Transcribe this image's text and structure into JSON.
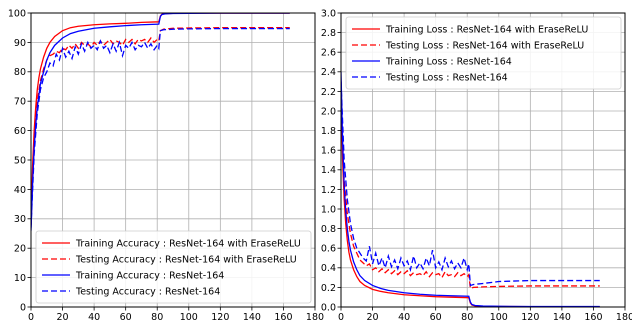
{
  "chart_data": [
    {
      "type": "line",
      "title": "",
      "xlabel": "",
      "ylabel": "",
      "xlim": [
        0,
        180
      ],
      "ylim": [
        0,
        100
      ],
      "xticks": [
        0,
        20,
        40,
        60,
        80,
        100,
        120,
        140,
        160,
        180
      ],
      "yticks": [
        0,
        10,
        20,
        30,
        40,
        50,
        60,
        70,
        80,
        90,
        100
      ],
      "grid": true,
      "legend_position": "lower-right",
      "series": [
        {
          "name": "Training Accuracy : ResNet-164 with EraseReLU",
          "color": "#ff0000",
          "dash": "solid",
          "x": [
            0,
            1,
            2,
            3,
            4,
            5,
            6,
            8,
            10,
            12,
            15,
            20,
            25,
            30,
            40,
            50,
            60,
            70,
            81,
            82,
            83,
            85,
            90,
            100,
            120,
            140,
            164
          ],
          "y": [
            28,
            48,
            60,
            68,
            74,
            78,
            81,
            85,
            88,
            90,
            92,
            94,
            95,
            95.5,
            96,
            96.3,
            96.5,
            96.8,
            97,
            99,
            99.6,
            99.8,
            99.9,
            99.95,
            99.97,
            99.98,
            99.98
          ]
        },
        {
          "name": "Testing Accuracy : ResNet-164 with EraseReLU",
          "color": "#ff0000",
          "dash": "dashed",
          "x": [
            0,
            2,
            4,
            6,
            8,
            10,
            12,
            14,
            16,
            18,
            20,
            22,
            24,
            26,
            28,
            30,
            32,
            34,
            36,
            38,
            40,
            42,
            44,
            46,
            48,
            50,
            52,
            54,
            56,
            58,
            60,
            62,
            64,
            66,
            68,
            70,
            72,
            74,
            76,
            78,
            80,
            81,
            82,
            84,
            90,
            100,
            120,
            140,
            164
          ],
          "y": [
            28,
            58,
            70,
            77,
            81,
            84,
            85.5,
            86,
            87,
            86.5,
            88,
            87.5,
            89,
            88,
            89.5,
            88,
            90,
            89,
            89.5,
            88.5,
            90,
            89,
            90.5,
            89,
            90,
            91,
            89.5,
            90.5,
            90,
            89,
            91,
            90,
            91,
            89.5,
            91,
            90.5,
            91,
            90,
            91.5,
            90,
            91,
            90.5,
            94,
            94.5,
            94.8,
            94.9,
            95,
            95,
            95
          ]
        },
        {
          "name": "Training Accuracy : ResNet-164",
          "color": "#0000ff",
          "dash": "solid",
          "x": [
            0,
            1,
            2,
            3,
            4,
            5,
            6,
            8,
            10,
            12,
            15,
            20,
            25,
            30,
            40,
            50,
            60,
            70,
            81,
            82,
            83,
            85,
            90,
            100,
            120,
            140,
            164
          ],
          "y": [
            26,
            42,
            54,
            62,
            68,
            72,
            76,
            80,
            84,
            86.5,
            89,
            91.5,
            93,
            93.8,
            94.8,
            95.3,
            95.7,
            96,
            96.2,
            98.8,
            99.5,
            99.7,
            99.85,
            99.9,
            99.95,
            99.96,
            99.97
          ]
        },
        {
          "name": "Testing Accuracy : ResNet-164",
          "color": "#0000ff",
          "dash": "dashed",
          "x": [
            0,
            2,
            4,
            6,
            8,
            10,
            12,
            14,
            16,
            18,
            20,
            22,
            24,
            26,
            28,
            30,
            32,
            34,
            36,
            38,
            40,
            42,
            44,
            46,
            48,
            50,
            52,
            54,
            56,
            58,
            60,
            62,
            64,
            66,
            68,
            70,
            72,
            74,
            76,
            78,
            80,
            81,
            82,
            84,
            90,
            100,
            120,
            140,
            164
          ],
          "y": [
            27,
            52,
            66,
            74,
            78,
            80,
            83,
            82,
            86,
            84,
            88,
            85,
            87,
            84.5,
            88.5,
            86,
            89.5,
            87,
            90,
            88,
            89,
            87.5,
            90.5,
            88,
            89,
            86.5,
            89.5,
            87,
            90,
            85.5,
            89,
            88,
            90,
            87.5,
            89,
            88.5,
            90,
            88,
            89.5,
            87.5,
            89,
            88,
            94,
            94.3,
            94.5,
            94.6,
            94.7,
            94.7,
            94.7
          ]
        }
      ]
    },
    {
      "type": "line",
      "title": "",
      "xlabel": "",
      "ylabel": "",
      "xlim": [
        0,
        180
      ],
      "ylim": [
        0.0,
        3.0
      ],
      "xticks": [
        0,
        20,
        40,
        60,
        80,
        100,
        120,
        140,
        160,
        180
      ],
      "yticks": [
        0.0,
        0.2,
        0.4,
        0.6,
        0.8,
        1.0,
        1.2,
        1.4,
        1.6,
        1.8,
        2.0,
        2.2,
        2.4,
        2.6,
        2.8,
        3.0
      ],
      "grid": true,
      "legend_position": "upper-right",
      "series": [
        {
          "name": "Training Loss : ResNet-164 with EraseReLU",
          "color": "#ff0000",
          "dash": "solid",
          "x": [
            0,
            1,
            2,
            3,
            4,
            5,
            6,
            8,
            10,
            12,
            15,
            20,
            25,
            30,
            40,
            50,
            60,
            70,
            81,
            82,
            83,
            85,
            90,
            100,
            120,
            140,
            164
          ],
          "y": [
            2.3,
            1.5,
            1.1,
            0.85,
            0.68,
            0.56,
            0.48,
            0.38,
            0.31,
            0.26,
            0.22,
            0.18,
            0.16,
            0.145,
            0.125,
            0.115,
            0.105,
            0.1,
            0.095,
            0.04,
            0.02,
            0.012,
            0.008,
            0.005,
            0.004,
            0.004,
            0.004
          ]
        },
        {
          "name": "Testing Loss : ResNet-164 with EraseReLU",
          "color": "#ff0000",
          "dash": "dashed",
          "x": [
            0,
            2,
            4,
            6,
            8,
            10,
            12,
            14,
            16,
            18,
            20,
            22,
            24,
            26,
            28,
            30,
            32,
            34,
            36,
            38,
            40,
            42,
            44,
            46,
            48,
            50,
            52,
            54,
            56,
            58,
            60,
            62,
            64,
            66,
            68,
            70,
            72,
            74,
            76,
            78,
            80,
            81,
            82,
            84,
            90,
            100,
            120,
            140,
            164
          ],
          "y": [
            2.2,
            1.3,
            0.95,
            0.75,
            0.62,
            0.55,
            0.48,
            0.45,
            0.42,
            0.44,
            0.38,
            0.4,
            0.36,
            0.39,
            0.35,
            0.38,
            0.34,
            0.37,
            0.33,
            0.36,
            0.34,
            0.37,
            0.32,
            0.35,
            0.33,
            0.34,
            0.32,
            0.36,
            0.31,
            0.35,
            0.33,
            0.34,
            0.3,
            0.36,
            0.32,
            0.33,
            0.31,
            0.35,
            0.32,
            0.34,
            0.31,
            0.33,
            0.19,
            0.2,
            0.205,
            0.21,
            0.215,
            0.215,
            0.215
          ]
        },
        {
          "name": "Training Loss : ResNet-164",
          "color": "#0000ff",
          "dash": "solid",
          "x": [
            0,
            1,
            2,
            3,
            4,
            5,
            6,
            8,
            10,
            12,
            15,
            20,
            25,
            30,
            40,
            50,
            60,
            70,
            81,
            82,
            83,
            85,
            90,
            100,
            120,
            140,
            164
          ],
          "y": [
            2.4,
            1.7,
            1.25,
            0.98,
            0.8,
            0.67,
            0.58,
            0.46,
            0.38,
            0.32,
            0.27,
            0.22,
            0.19,
            0.17,
            0.145,
            0.13,
            0.12,
            0.115,
            0.11,
            0.05,
            0.025,
            0.015,
            0.01,
            0.007,
            0.005,
            0.005,
            0.005
          ]
        },
        {
          "name": "Testing Loss : ResNet-164",
          "color": "#0000ff",
          "dash": "dashed",
          "x": [
            0,
            2,
            4,
            6,
            8,
            10,
            12,
            14,
            16,
            18,
            20,
            22,
            24,
            26,
            28,
            30,
            32,
            34,
            36,
            38,
            40,
            42,
            44,
            46,
            48,
            50,
            52,
            54,
            56,
            58,
            60,
            62,
            64,
            66,
            68,
            70,
            72,
            74,
            76,
            78,
            80,
            81,
            82,
            84,
            90,
            100,
            120,
            140,
            164
          ],
          "y": [
            2.3,
            1.5,
            1.1,
            0.85,
            0.7,
            0.6,
            0.55,
            0.5,
            0.47,
            0.62,
            0.44,
            0.55,
            0.42,
            0.5,
            0.4,
            0.52,
            0.41,
            0.48,
            0.39,
            0.5,
            0.42,
            0.47,
            0.38,
            0.52,
            0.4,
            0.45,
            0.39,
            0.5,
            0.42,
            0.58,
            0.4,
            0.46,
            0.38,
            0.5,
            0.41,
            0.47,
            0.39,
            0.45,
            0.4,
            0.5,
            0.38,
            0.44,
            0.22,
            0.23,
            0.24,
            0.26,
            0.27,
            0.27,
            0.27
          ]
        }
      ]
    }
  ]
}
